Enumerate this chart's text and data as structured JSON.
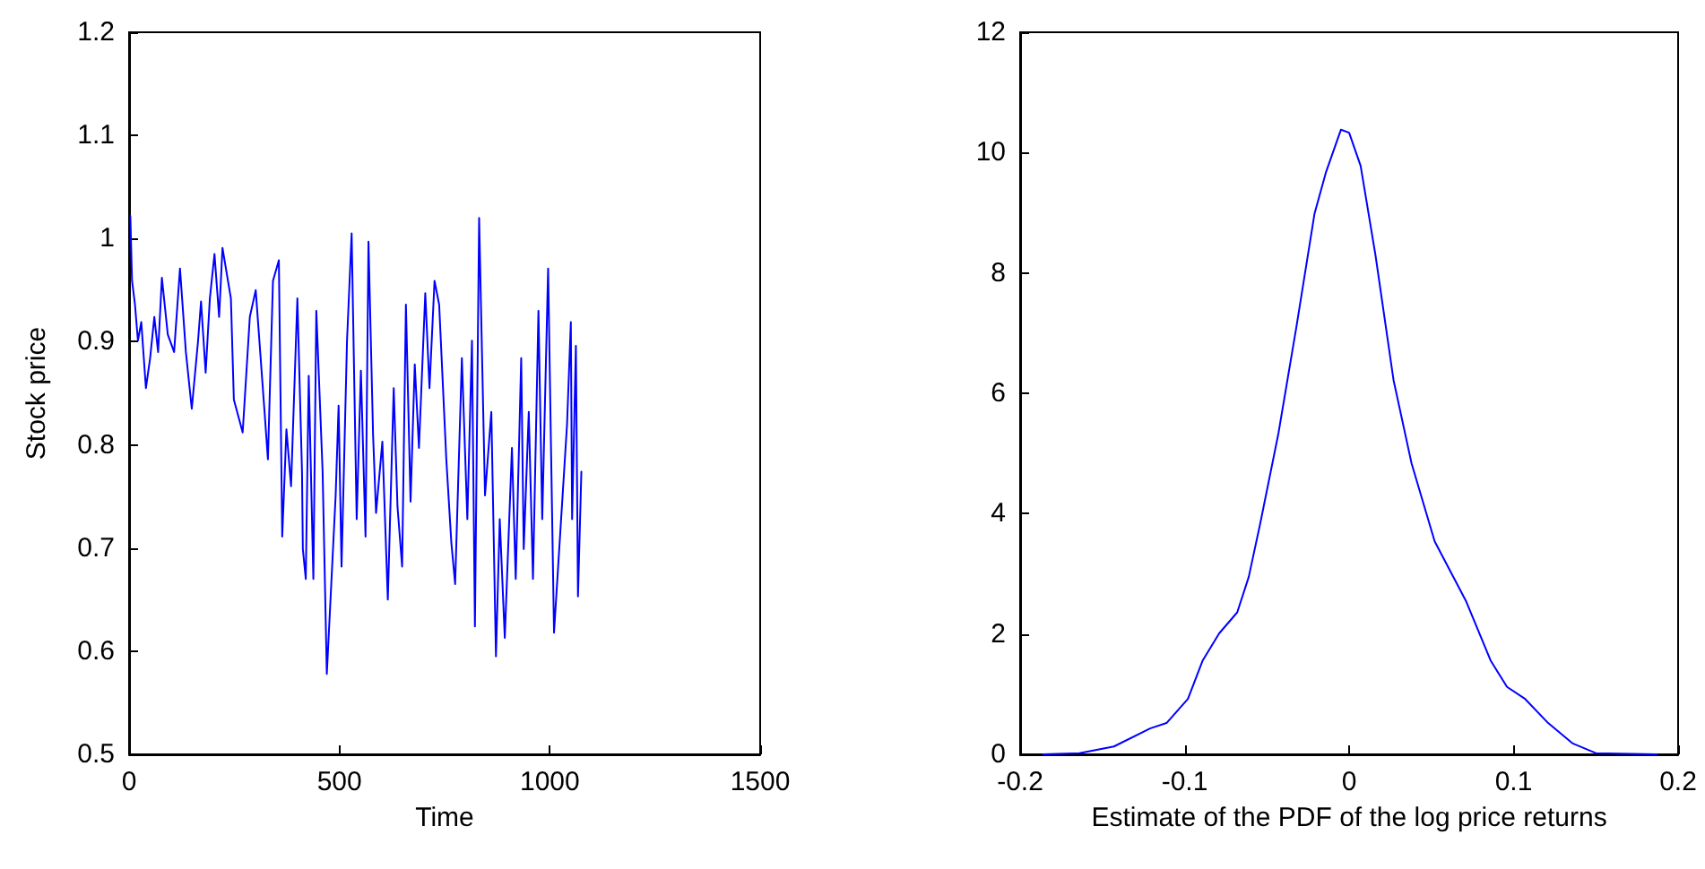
{
  "chart_data": [
    {
      "type": "line",
      "xlabel": "Time",
      "ylabel": "Stock price",
      "xlim": [
        0,
        1500
      ],
      "xticks": [
        0,
        500,
        1000,
        1500
      ],
      "ylim": [
        0.5,
        1.2
      ],
      "yticks": [
        0.5,
        0.6,
        0.7,
        0.8,
        0.9,
        1,
        1.1,
        1.2
      ],
      "grid": false,
      "marker": "none",
      "line_style": "solid",
      "series": [
        {
          "color": "#0000ff",
          "x": [
            3,
            7,
            14,
            21,
            29,
            40,
            50,
            60,
            69,
            78,
            92,
            107,
            121,
            135,
            149,
            164,
            171,
            182,
            192,
            203,
            214,
            222,
            242,
            249,
            270,
            287,
            301,
            322,
            330,
            342,
            356,
            364,
            374,
            385,
            400,
            411,
            413,
            420,
            427,
            438,
            445,
            460,
            470,
            491,
            498,
            505,
            518,
            529,
            541,
            551,
            562,
            569,
            580,
            587,
            602,
            615,
            629,
            638,
            649,
            658,
            669,
            679,
            689,
            704,
            714,
            726,
            737,
            754,
            766,
            775,
            791,
            804,
            815,
            822,
            832,
            846,
            861,
            872,
            881,
            893,
            910,
            919,
            932,
            938,
            950,
            960,
            973,
            982,
            996,
            1010,
            1041,
            1050,
            1053,
            1062,
            1067,
            1075
          ],
          "values": [
            1.022,
            0.959,
            0.936,
            0.901,
            0.919,
            0.855,
            0.884,
            0.924,
            0.89,
            0.962,
            0.907,
            0.89,
            0.971,
            0.89,
            0.835,
            0.901,
            0.939,
            0.87,
            0.942,
            0.985,
            0.924,
            0.991,
            0.942,
            0.844,
            0.812,
            0.924,
            0.95,
            0.832,
            0.786,
            0.959,
            0.979,
            0.711,
            0.815,
            0.76,
            0.942,
            0.774,
            0.699,
            0.67,
            0.867,
            0.67,
            0.93,
            0.774,
            0.578,
            0.751,
            0.838,
            0.682,
            0.901,
            1.005,
            0.728,
            0.872,
            0.711,
            0.997,
            0.809,
            0.734,
            0.803,
            0.65,
            0.855,
            0.74,
            0.682,
            0.936,
            0.745,
            0.878,
            0.797,
            0.947,
            0.855,
            0.959,
            0.936,
            0.786,
            0.705,
            0.665,
            0.884,
            0.728,
            0.901,
            0.624,
            1.02,
            0.751,
            0.832,
            0.595,
            0.728,
            0.613,
            0.797,
            0.67,
            0.884,
            0.699,
            0.832,
            0.67,
            0.93,
            0.728,
            0.971,
            0.618,
            0.82,
            0.919,
            0.728,
            0.896,
            0.653,
            0.774
          ]
        }
      ]
    },
    {
      "type": "line",
      "xlabel": "Estimate of the PDF of the log price returns",
      "xlim": [
        -0.2,
        0.2
      ],
      "xticks": [
        -0.2,
        -0.1,
        0,
        0.1,
        0.2
      ],
      "ylim": [
        0,
        12
      ],
      "yticks": [
        0,
        2,
        4,
        6,
        8,
        10,
        12
      ],
      "grid": false,
      "marker": "none",
      "line_style": "solid",
      "series": [
        {
          "color": "#0000ff",
          "x": [
            -0.186,
            -0.164,
            -0.143,
            -0.121,
            -0.111,
            -0.098,
            -0.089,
            -0.079,
            -0.068,
            -0.061,
            -0.054,
            -0.043,
            -0.032,
            -0.021,
            -0.014,
            -0.005,
            0,
            0.007,
            0.016,
            0.027,
            0.038,
            0.052,
            0.071,
            0.086,
            0.096,
            0.107,
            0.121,
            0.136,
            0.15,
            0.187
          ],
          "values": [
            0,
            0.02,
            0.13,
            0.43,
            0.52,
            0.92,
            1.56,
            2.01,
            2.36,
            2.95,
            3.84,
            5.33,
            7.11,
            8.99,
            9.68,
            10.38,
            10.33,
            9.78,
            8.3,
            6.22,
            4.83,
            3.54,
            2.55,
            1.56,
            1.12,
            0.92,
            0.52,
            0.18,
            0.02,
            0
          ]
        }
      ]
    }
  ]
}
